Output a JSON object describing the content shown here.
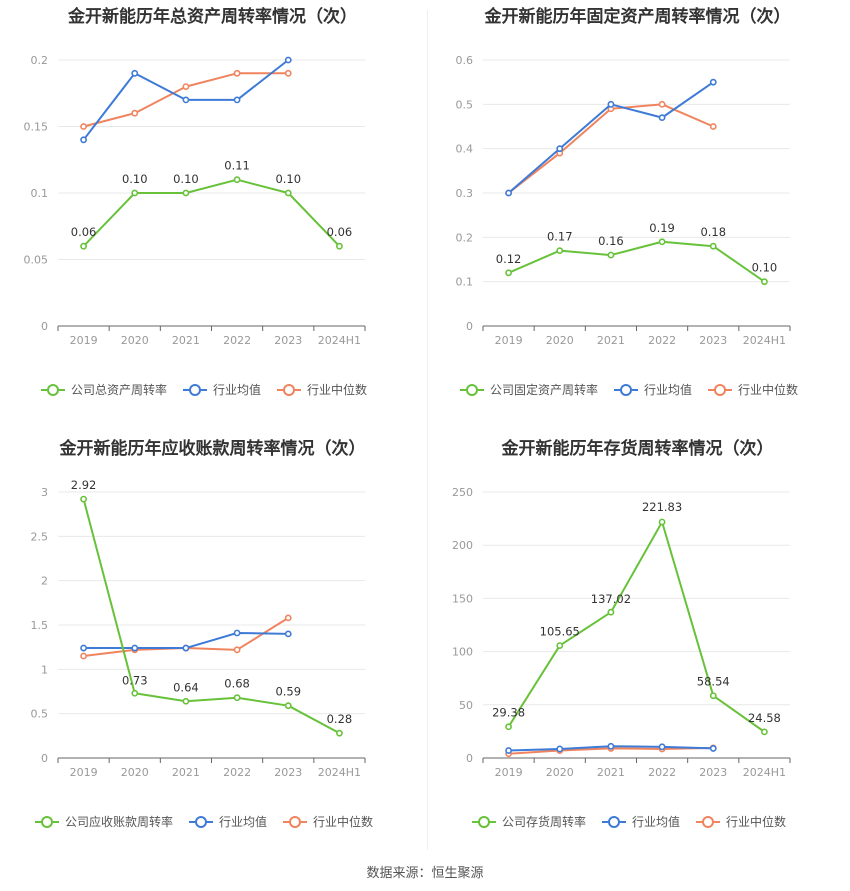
{
  "footer": {
    "source": "数据来源：恒生聚源"
  },
  "colors": {
    "company": "#67c23a",
    "industry_avg": "#3e7bd6",
    "industry_median": "#f0845e",
    "grid": "#e8e8e8",
    "axis": "#999999"
  },
  "chart_data": [
    {
      "type": "line",
      "title": "金开新能历年总资产周转率情况（次）",
      "categories": [
        "2019",
        "2020",
        "2021",
        "2022",
        "2023",
        "2024H1"
      ],
      "ylim": [
        0,
        0.2
      ],
      "yticks": [
        0,
        0.05,
        0.1,
        0.15,
        0.2
      ],
      "ytick_labels": [
        "0",
        "0.05",
        "0.1",
        "0.15",
        "0.2"
      ],
      "grid": true,
      "legend_position": "bottom",
      "series": [
        {
          "name": "公司总资产周转率",
          "values": [
            0.06,
            0.1,
            0.1,
            0.11,
            0.1,
            0.06
          ],
          "labels": [
            "0.06",
            "0.10",
            "0.10",
            "0.11",
            "0.10",
            "0.06"
          ],
          "color": "#67c23a"
        },
        {
          "name": "行业均值",
          "values": [
            0.14,
            0.19,
            0.17,
            0.17,
            0.2,
            null
          ],
          "color": "#3e7bd6"
        },
        {
          "name": "行业中位数",
          "values": [
            0.15,
            0.16,
            0.18,
            0.19,
            0.19,
            null
          ],
          "color": "#f0845e"
        }
      ]
    },
    {
      "type": "line",
      "title": "金开新能历年固定资产周转率情况（次）",
      "categories": [
        "2019",
        "2020",
        "2021",
        "2022",
        "2023",
        "2024H1"
      ],
      "ylim": [
        0,
        0.6
      ],
      "yticks": [
        0,
        0.1,
        0.2,
        0.3,
        0.4,
        0.5,
        0.6
      ],
      "ytick_labels": [
        "0",
        "0.1",
        "0.2",
        "0.3",
        "0.4",
        "0.5",
        "0.6"
      ],
      "grid": true,
      "legend_position": "bottom",
      "series": [
        {
          "name": "公司固定资产周转率",
          "values": [
            0.12,
            0.17,
            0.16,
            0.19,
            0.18,
            0.1
          ],
          "labels": [
            "0.12",
            "0.17",
            "0.16",
            "0.19",
            "0.18",
            "0.10"
          ],
          "color": "#67c23a"
        },
        {
          "name": "行业均值",
          "values": [
            0.3,
            0.4,
            0.5,
            0.47,
            0.55,
            null
          ],
          "color": "#3e7bd6"
        },
        {
          "name": "行业中位数",
          "values": [
            0.3,
            0.39,
            0.49,
            0.5,
            0.45,
            null
          ],
          "color": "#f0845e"
        }
      ]
    },
    {
      "type": "line",
      "title": "金开新能历年应收账款周转率情况（次）",
      "categories": [
        "2019",
        "2020",
        "2021",
        "2022",
        "2023",
        "2024H1"
      ],
      "ylim": [
        0,
        3
      ],
      "yticks": [
        0,
        0.5,
        1,
        1.5,
        2,
        2.5,
        3
      ],
      "ytick_labels": [
        "0",
        "0.5",
        "1",
        "1.5",
        "2",
        "2.5",
        "3"
      ],
      "grid": true,
      "legend_position": "bottom",
      "series": [
        {
          "name": "公司应收账款周转率",
          "values": [
            2.92,
            0.73,
            0.64,
            0.68,
            0.59,
            0.28
          ],
          "labels": [
            "2.92",
            "0.73",
            "0.64",
            "0.68",
            "0.59",
            "0.28"
          ],
          "color": "#67c23a"
        },
        {
          "name": "行业均值",
          "values": [
            1.24,
            1.24,
            1.24,
            1.41,
            1.4,
            null
          ],
          "color": "#3e7bd6"
        },
        {
          "name": "行业中位数",
          "values": [
            1.15,
            1.22,
            1.24,
            1.22,
            1.58,
            null
          ],
          "color": "#f0845e"
        }
      ]
    },
    {
      "type": "line",
      "title": "金开新能历年存货周转率情况（次）",
      "categories": [
        "2019",
        "2020",
        "2021",
        "2022",
        "2023",
        "2024H1"
      ],
      "ylim": [
        0,
        250
      ],
      "yticks": [
        0,
        50,
        100,
        150,
        200,
        250
      ],
      "ytick_labels": [
        "0",
        "50",
        "100",
        "150",
        "200",
        "250"
      ],
      "grid": true,
      "legend_position": "bottom",
      "series": [
        {
          "name": "公司存货周转率",
          "values": [
            29.38,
            105.65,
            137.02,
            221.83,
            58.54,
            24.58
          ],
          "labels": [
            "29.38",
            "105.65",
            "137.02",
            "221.83",
            "58.54",
            "24.58"
          ],
          "color": "#67c23a"
        },
        {
          "name": "行业均值",
          "values": [
            7,
            8.5,
            11,
            10.5,
            9,
            null
          ],
          "color": "#3e7bd6"
        },
        {
          "name": "行业中位数",
          "values": [
            4,
            7,
            9,
            8.5,
            9.5,
            null
          ],
          "color": "#f0845e"
        }
      ]
    }
  ]
}
